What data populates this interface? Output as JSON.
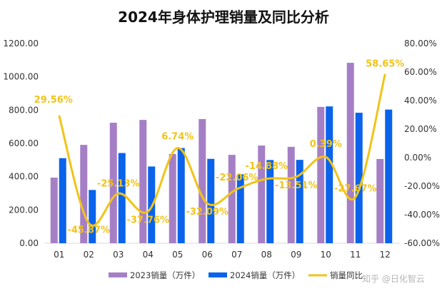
{
  "chart_data": {
    "type": "bar+line",
    "title": "2024年身体护理销量及同比分析",
    "categories": [
      "01",
      "02",
      "03",
      "04",
      "05",
      "06",
      "07",
      "08",
      "09",
      "10",
      "11",
      "12"
    ],
    "series": [
      {
        "name": "2023销量（万件）",
        "type": "bar",
        "axis": "left",
        "color": "#A57FC6",
        "values": [
          394,
          591,
          724,
          741,
          536,
          746,
          531,
          587,
          579,
          819,
          1084,
          506
        ]
      },
      {
        "name": "2024销量（万件）",
        "type": "bar",
        "axis": "left",
        "color": "#0A63EA",
        "values": [
          511,
          320,
          542,
          461,
          572,
          507,
          414,
          500,
          501,
          822,
          784,
          803
        ]
      },
      {
        "name": "销量同比",
        "type": "line",
        "axis": "right",
        "color": "#F2C318",
        "smooth": true,
        "values": [
          29.56,
          -45.87,
          -25.13,
          -37.76,
          6.74,
          -32.09,
          -22.06,
          -14.88,
          -13.51,
          0.39,
          -27.67,
          58.65
        ],
        "labels": [
          "29.56%",
          "-45.87%",
          "-25.13%",
          "-37.76%",
          "6.74%",
          "-32.09%",
          "-22.06%",
          "-14.88%",
          "-13.51%",
          "0.39%",
          "-27.67%",
          "58.65%"
        ]
      }
    ],
    "y_left": {
      "min": 0,
      "max": 1200,
      "ticks": [
        "0.00",
        "200.00",
        "400.00",
        "600.00",
        "800.00",
        "1000.00",
        "1200.00"
      ]
    },
    "y_right": {
      "min": -60,
      "max": 80,
      "ticks": [
        "-60.00%",
        "-40.00%",
        "-20.00%",
        "0.00%",
        "20.00%",
        "40.00%",
        "60.00%",
        "80.00%"
      ]
    },
    "grid": false,
    "legend": "bottom"
  },
  "watermark": "知乎 @日化智云"
}
